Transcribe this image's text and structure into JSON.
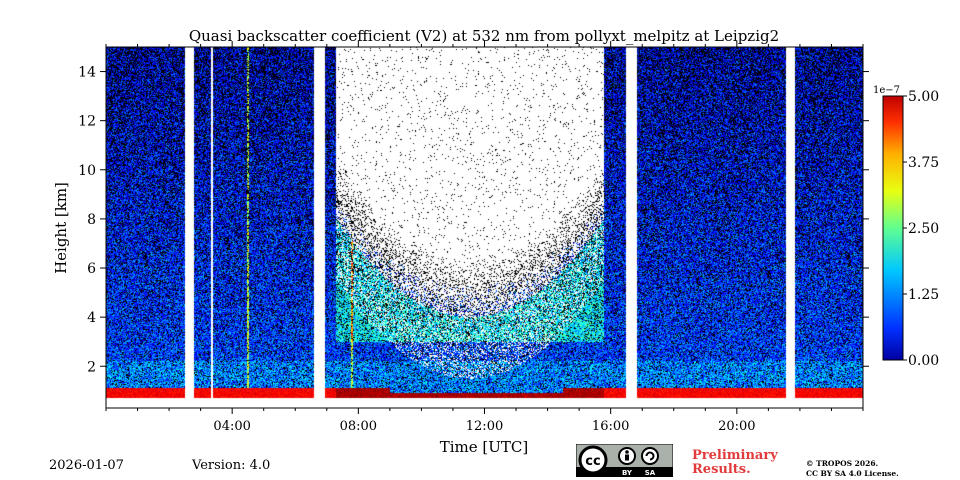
{
  "chart_data": {
    "type": "heatmap",
    "title": "Quasi backscatter coefficient (V2) at 532 nm from pollyxt_melpitz at Leipzig2",
    "xlabel": "Time [UTC]",
    "ylabel": "Height [km]",
    "x_range_hours": [
      0,
      24
    ],
    "y_range_km": [
      0.3,
      15
    ],
    "x_ticks": [
      {
        "value": 4,
        "label": "04:00"
      },
      {
        "value": 8,
        "label": "08:00"
      },
      {
        "value": 12,
        "label": "12:00"
      },
      {
        "value": 16,
        "label": "16:00"
      },
      {
        "value": 20,
        "label": "20:00"
      }
    ],
    "y_ticks": [
      {
        "value": 2,
        "label": "2"
      },
      {
        "value": 4,
        "label": "4"
      },
      {
        "value": 6,
        "label": "6"
      },
      {
        "value": 8,
        "label": "8"
      },
      {
        "value": 10,
        "label": "10"
      },
      {
        "value": 12,
        "label": "12"
      },
      {
        "value": 14,
        "label": "14"
      }
    ],
    "colorbar": {
      "range": [
        0,
        5
      ],
      "exponent_label": "1e−7",
      "ticks": [
        {
          "value": 0,
          "label": "0.00"
        },
        {
          "value": 1.25,
          "label": "1.25"
        },
        {
          "value": 2.5,
          "label": "2.50"
        },
        {
          "value": 3.75,
          "label": "3.75"
        },
        {
          "value": 5,
          "label": "5.00"
        }
      ],
      "colormap": "jet"
    },
    "data_gaps_hours": [
      [
        2.5,
        2.8
      ],
      [
        6.6,
        6.95
      ],
      [
        16.5,
        16.85
      ],
      [
        21.55,
        21.85
      ]
    ],
    "thin_gaps_hours": [
      3.35
    ],
    "spike_times_hours": [
      4.5,
      7.8
    ],
    "cloud_region": {
      "start_hour": 7.3,
      "end_hour": 15.8,
      "bottom_km": 4.0,
      "core_bottom_km": 8.0
    },
    "boundary_layer": {
      "pre_cloud_top_km": 1.1,
      "daytime_top_km": 0.9,
      "daytime_high_start_hour": 9.0,
      "daytime_high_end_hour": 14.5
    }
  },
  "footer": {
    "date": "2026-01-07",
    "version": "Version: 4.0",
    "preliminary_line1": "Preliminary",
    "preliminary_line2": "Results.",
    "copyright_line1": "© TROPOS 2026.",
    "copyright_line2": "CC BY SA 4.0 License.",
    "cc_badge_text": [
      "BY",
      "SA"
    ]
  },
  "colors": {
    "preliminary": "#e23b3b",
    "gap": "#ffffff",
    "frame": "#000000"
  }
}
